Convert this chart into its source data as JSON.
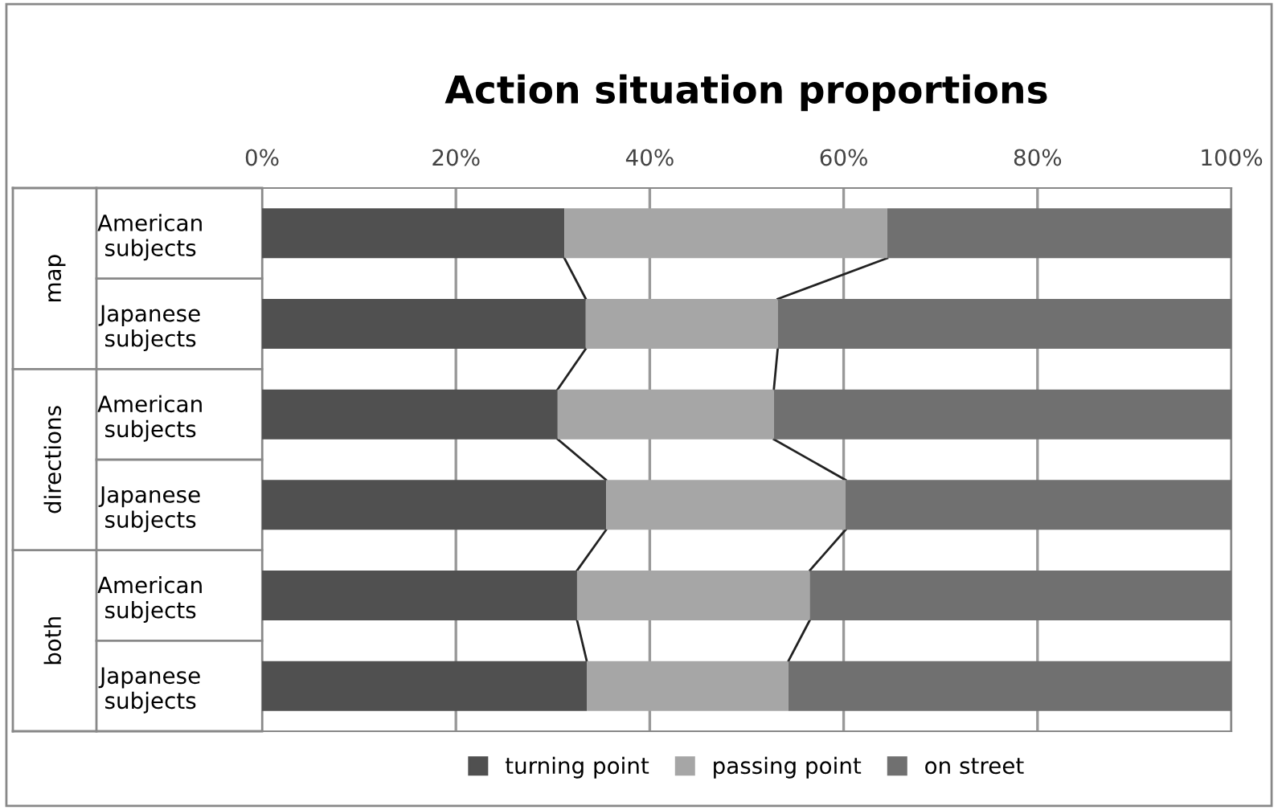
{
  "chart_data": {
    "type": "bar",
    "orientation": "horizontal",
    "stacked": true,
    "title": "Action situation proportions",
    "categories": [
      "American\nsubjects",
      "Japanese\nsubjects",
      "American\nsubjects",
      "Japanese\nsubjects",
      "American\nsubjects",
      "Japanese\nsubjects"
    ],
    "annotations": [
      "map",
      "directions",
      "both"
    ],
    "series": [
      {
        "name": "turning point",
        "color": "#505050",
        "values": [
          31.2,
          33.4,
          30.5,
          35.5,
          32.5,
          33.5
        ]
      },
      {
        "name": "passing point",
        "color": "#a6a6a6",
        "values": [
          33.3,
          19.8,
          22.3,
          24.7,
          24.0,
          20.8
        ]
      },
      {
        "name": "on street",
        "color": "#707070",
        "values": [
          35.5,
          46.8,
          47.2,
          39.8,
          43.5,
          45.7
        ]
      }
    ],
    "xlim": [
      0,
      100
    ],
    "xticks": [
      {
        "value": 0,
        "label": "0%"
      },
      {
        "value": 20,
        "label": "20%"
      },
      {
        "value": 40,
        "label": "40%"
      },
      {
        "value": 60,
        "label": "60%"
      },
      {
        "value": 80,
        "label": "80%"
      },
      {
        "value": 100,
        "label": "100%"
      }
    ],
    "grid": "x",
    "legend": "bottom"
  }
}
